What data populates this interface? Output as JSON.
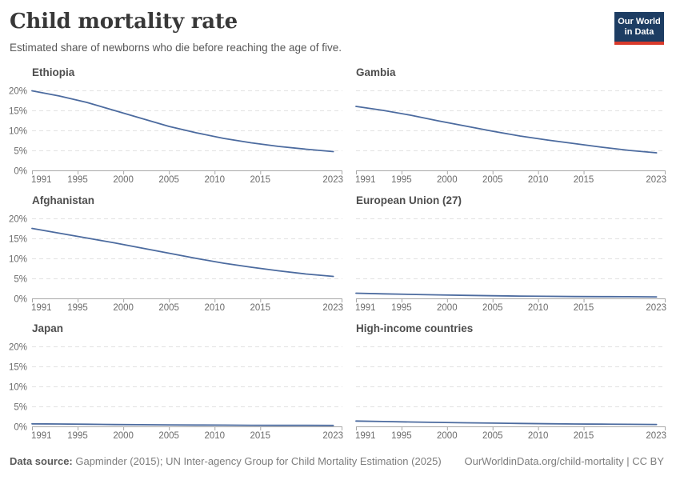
{
  "header": {
    "title": "Child mortality rate",
    "subtitle": "Estimated share of newborns who die before reaching the age of five.",
    "logo": {
      "line1": "Our World",
      "line2": "in Data",
      "bg_color": "#1d3d63",
      "bar_color": "#d93a2b"
    }
  },
  "footer": {
    "source_label": "Data source:",
    "source_text": " Gapminder (2015); UN Inter-agency Group for Child Mortality Estimation (2025)",
    "attribution": "OurWorldinData.org/child-mortality | CC BY"
  },
  "styles": {
    "line_color": "#4c6b9f",
    "grid_color": "#e2e2e2",
    "axis_color": "#a8a8a8",
    "tick_label_color": "#6b6b6b"
  },
  "axes": {
    "xlim": [
      1990,
      2024
    ],
    "ylim": [
      0,
      20
    ],
    "x_ticks": [
      1991,
      1995,
      2000,
      2005,
      2010,
      2015,
      2023
    ],
    "y_ticks": [
      0,
      5,
      10,
      15,
      20
    ],
    "y_suffix": "%",
    "grid": "dashed horizontal"
  },
  "chart_data": [
    {
      "type": "line",
      "title": "Ethiopia",
      "x": [
        1990,
        1993,
        1996,
        1999,
        2002,
        2005,
        2008,
        2011,
        2014,
        2017,
        2020,
        2023
      ],
      "values": [
        19.9,
        18.6,
        17.0,
        15.0,
        13.0,
        11.0,
        9.4,
        8.0,
        6.9,
        6.0,
        5.3,
        4.7
      ],
      "ylabel": "",
      "xlabel": ""
    },
    {
      "type": "line",
      "title": "Gambia",
      "x": [
        1990,
        1993,
        1996,
        1999,
        2002,
        2005,
        2008,
        2011,
        2014,
        2017,
        2020,
        2023
      ],
      "values": [
        16.0,
        15.0,
        13.8,
        12.4,
        11.1,
        9.8,
        8.6,
        7.6,
        6.7,
        5.8,
        5.0,
        4.4
      ],
      "ylabel": "",
      "xlabel": ""
    },
    {
      "type": "line",
      "title": "Afghanistan",
      "x": [
        1990,
        1993,
        1996,
        1999,
        2002,
        2005,
        2008,
        2011,
        2014,
        2017,
        2020,
        2023
      ],
      "values": [
        17.5,
        16.3,
        15.1,
        13.9,
        12.6,
        11.3,
        10.0,
        8.8,
        7.8,
        6.9,
        6.1,
        5.5
      ],
      "ylabel": "",
      "xlabel": ""
    },
    {
      "type": "line",
      "title": "European Union (27)",
      "x": [
        1990,
        1993,
        1996,
        1999,
        2002,
        2005,
        2008,
        2011,
        2014,
        2017,
        2020,
        2023
      ],
      "values": [
        1.3,
        1.15,
        1.0,
        0.88,
        0.76,
        0.66,
        0.58,
        0.52,
        0.47,
        0.44,
        0.41,
        0.39
      ],
      "ylabel": "",
      "xlabel": ""
    },
    {
      "type": "line",
      "title": "Japan",
      "x": [
        1990,
        1993,
        1996,
        1999,
        2002,
        2005,
        2008,
        2011,
        2014,
        2017,
        2020,
        2023
      ],
      "values": [
        0.65,
        0.6,
        0.53,
        0.47,
        0.42,
        0.38,
        0.34,
        0.31,
        0.29,
        0.27,
        0.26,
        0.25
      ],
      "ylabel": "",
      "xlabel": ""
    },
    {
      "type": "line",
      "title": "High-income countries",
      "x": [
        1990,
        1993,
        1996,
        1999,
        2002,
        2005,
        2008,
        2011,
        2014,
        2017,
        2020,
        2023
      ],
      "values": [
        1.35,
        1.22,
        1.1,
        1.0,
        0.9,
        0.81,
        0.73,
        0.66,
        0.6,
        0.56,
        0.52,
        0.49
      ],
      "ylabel": "",
      "xlabel": ""
    }
  ]
}
